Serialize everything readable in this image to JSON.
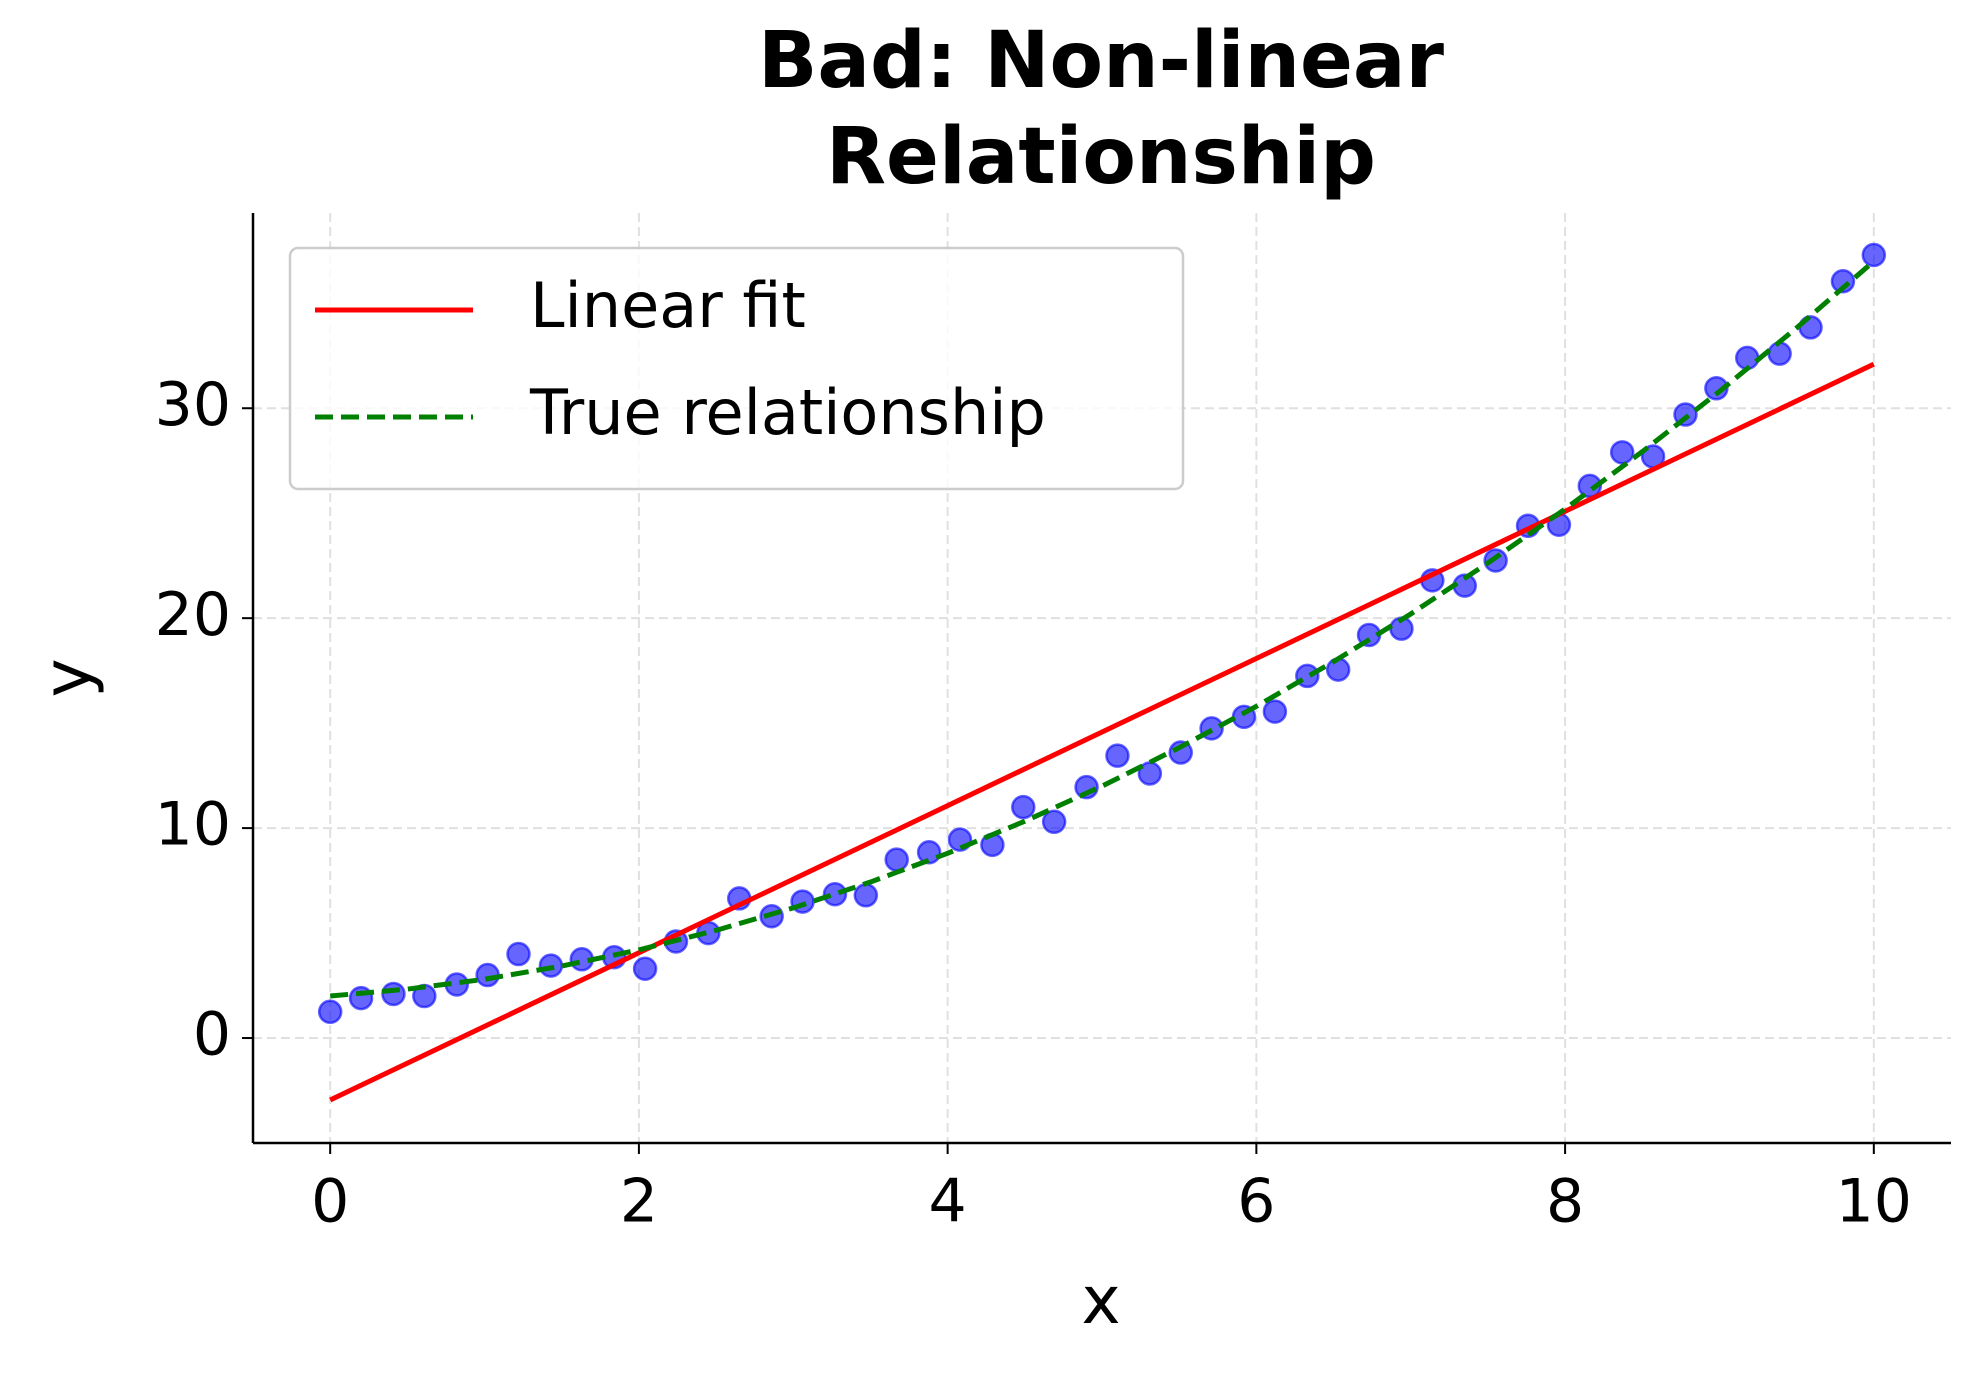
{
  "chart_data": {
    "type": "scatter",
    "title": "Bad: Non-linear\nRelationship",
    "x_label": "x",
    "y_label": "y",
    "xlim": [
      -0.5,
      10.5
    ],
    "ylim": [
      -5,
      39.3
    ],
    "xticks": [
      0,
      2,
      4,
      6,
      8,
      10
    ],
    "yticks": [
      0,
      10,
      20,
      30
    ],
    "grid": true,
    "legend_position": "upper-left",
    "points": {
      "color": "#0000ff",
      "x": [
        0,
        0.2,
        0.41,
        0.61,
        0.82,
        1.02,
        1.22,
        1.43,
        1.63,
        1.84,
        2.04,
        2.24,
        2.45,
        2.65,
        2.86,
        3.06,
        3.27,
        3.47,
        3.67,
        3.88,
        4.08,
        4.29,
        4.49,
        4.69,
        4.9,
        5.1,
        5.31,
        5.51,
        5.71,
        5.92,
        6.12,
        6.33,
        6.53,
        6.73,
        6.94,
        7.14,
        7.35,
        7.55,
        7.76,
        7.96,
        8.16,
        8.37,
        8.57,
        8.78,
        8.98,
        9.18,
        9.39,
        9.59,
        9.8,
        10
      ],
      "values": [
        1.25,
        1.9,
        2.1,
        2.0,
        2.55,
        3.0,
        4.0,
        3.45,
        3.75,
        3.85,
        3.3,
        4.6,
        5.0,
        6.65,
        5.8,
        6.5,
        6.85,
        6.8,
        8.5,
        8.85,
        9.45,
        9.2,
        11.0,
        10.3,
        11.95,
        13.45,
        12.6,
        13.6,
        14.75,
        15.3,
        15.55,
        17.25,
        17.55,
        19.2,
        19.5,
        21.8,
        21.55,
        22.75,
        24.4,
        24.45,
        26.3,
        27.9,
        27.7,
        29.7,
        30.95,
        32.4,
        32.6,
        33.85,
        36.05,
        37.3
      ]
    },
    "series": [
      {
        "name": "Linear fit",
        "color": "#ff0000",
        "dashed": false,
        "x": [
          0,
          10
        ],
        "values": [
          -2.95,
          32.1
        ]
      },
      {
        "name": "True relationship",
        "color": "#008000",
        "dashed": true,
        "x": [
          0,
          0.5,
          1,
          1.5,
          2,
          2.5,
          3,
          3.5,
          4,
          4.5,
          5,
          5.5,
          6,
          6.5,
          7,
          7.5,
          8,
          8.5,
          9,
          9.5,
          10
        ],
        "values": [
          2,
          2.33,
          2.8,
          3.43,
          4.2,
          5.13,
          6.2,
          7.43,
          8.8,
          10.33,
          12,
          13.83,
          15.8,
          17.93,
          20.2,
          22.63,
          25.2,
          27.93,
          30.8,
          33.83,
          37
        ]
      }
    ]
  }
}
